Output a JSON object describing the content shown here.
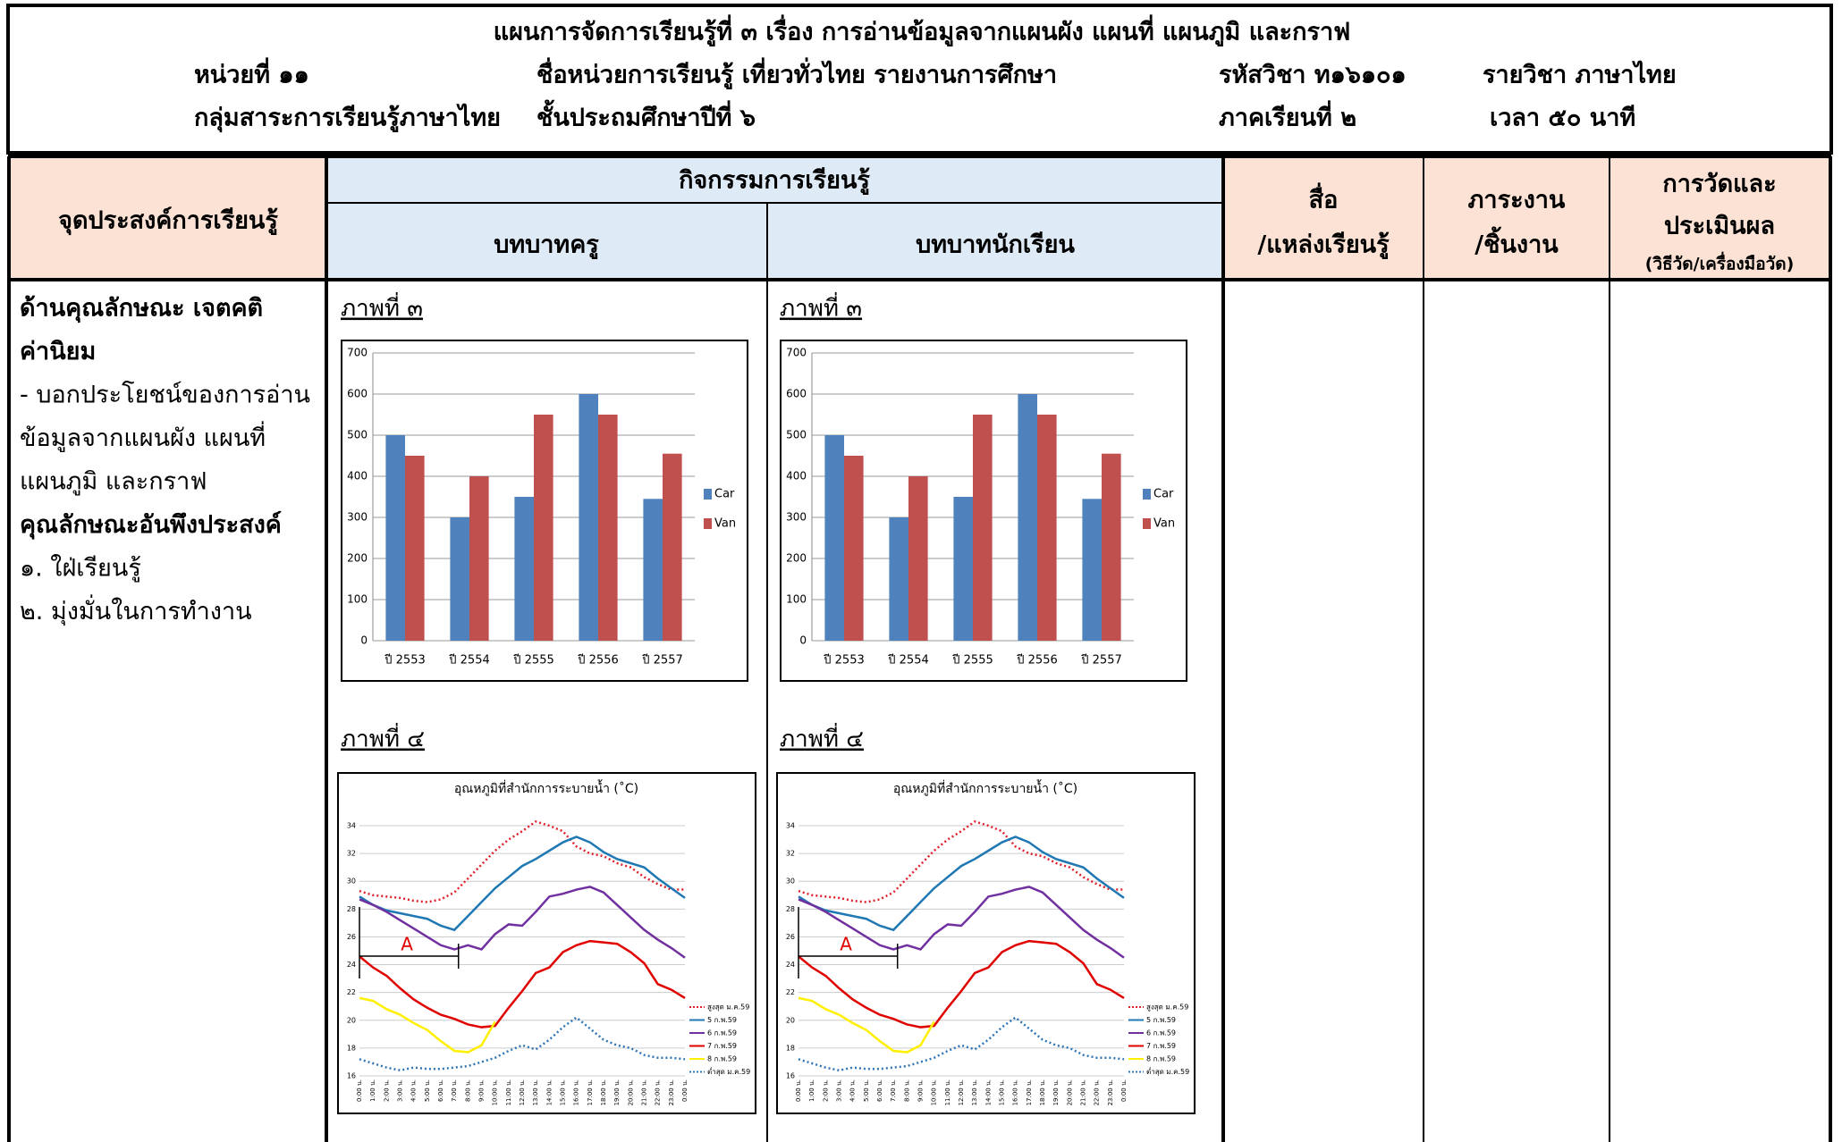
{
  "header": {
    "title": "แผนการจัดการเรียนรู้ที่ ๓  เรื่อง การอ่านข้อมูลจากแผนผัง แผนที่ แผนภูมิ และกราฟ",
    "unit": "หน่วยที่ ๑๑",
    "unit_name": "ชื่อหน่วยการเรียนรู้ เที่ยวทั่วไทย รายงานการศึกษา",
    "subject_code": "รหัสวิชา ท๑๖๑๐๑",
    "subject": "รายวิชา ภาษาไทย",
    "group": "กลุ่มสาระการเรียนรู้ภาษาไทย",
    "grade": "ชั้นประถมศึกษาปีที่ ๖",
    "semester": "ภาคเรียนที่ ๒",
    "time": "เวลา ๕๐ นาที"
  },
  "table": {
    "headers": {
      "objectives": "จุดประสงค์การเรียนรู้",
      "activities": "กิจกรรมการเรียนรู้",
      "teacher": "บทบาทครู",
      "student": "บทบาทนักเรียน",
      "media": [
        "สื่อ",
        "/แหล่งเรียนรู้"
      ],
      "tasks": [
        "ภาระงาน",
        "/ชิ้นงาน"
      ],
      "evaluation": [
        "การวัดและ",
        "ประเมินผล",
        "(วิธีวัด/เครื่องมือวัด)"
      ]
    },
    "objectives": [
      {
        "text": "ด้านคุณลักษณะ เจตคติ",
        "bold": true
      },
      {
        "text": "ค่านิยม",
        "bold": true
      },
      {
        "text": "- บอกประโยชน์ของการอ่าน",
        "bold": false
      },
      {
        "text": "ข้อมูลจากแผนผัง แผนที่",
        "bold": false
      },
      {
        "text": "แผนภูมิ และกราฟ",
        "bold": false
      },
      {
        "text": "คุณลักษณะอันพึงประสงค์",
        "bold": true
      },
      {
        "text": "๑. ใฝ่เรียนรู้",
        "bold": false
      },
      {
        "text": "๒. มุ่งมั่นในการทำงาน",
        "bold": false
      }
    ]
  },
  "figures": [
    {
      "caption": "ภาพที่ ๓",
      "chart": {
        "type": "bar",
        "categories": [
          "ปี 2553",
          "ปี 2554",
          "ปี 2555",
          "ปี 2556",
          "ปี 2557"
        ],
        "series": [
          {
            "name": "Car",
            "color": "#4f81bd",
            "values": [
              500,
              300,
              350,
              600,
              345
            ]
          },
          {
            "name": "Van",
            "color": "#c0504d",
            "values": [
              450,
              400,
              550,
              550,
              455
            ]
          }
        ],
        "ylim": [
          0,
          700
        ],
        "yticks": [
          0,
          100,
          200,
          300,
          400,
          500,
          600,
          700
        ],
        "grid": true,
        "legend": "right"
      }
    },
    {
      "caption": "ภาพที่ ๔",
      "chart": {
        "type": "line",
        "title": "อุณหภูมิที่สำนักการระบายน้ำ (˚C)",
        "categories": [
          "0:00 น.",
          "1:00 น.",
          "2:00 น.",
          "3:00 น.",
          "4:00 น.",
          "5:00 น.",
          "6:00 น.",
          "7:00 น.",
          "8:00 น.",
          "9:00 น.",
          "10:00 น.",
          "11:00 น.",
          "12:00 น.",
          "13:00 น.",
          "14:00 น.",
          "15:00 น.",
          "16:00 น.",
          "17:00 น.",
          "18:00 น.",
          "19:00 น.",
          "20:00 น.",
          "21:00 น.",
          "22:00 น.",
          "23:00 น.",
          "0:00 น."
        ],
        "series": [
          {
            "name": "สูงสุด ม.ค.59",
            "color": "#e0202a",
            "dash": "dotted",
            "values": [
              29.3,
              29,
              28.9,
              28.8,
              28.6,
              28.5,
              28.7,
              29.2,
              30.2,
              31.2,
              32.2,
              33,
              33.6,
              34.3,
              34,
              33.6,
              32.5,
              32,
              31.8,
              31.3,
              31,
              30.3,
              29.8,
              29.4,
              29.4
            ]
          },
          {
            "name": "5 ก.พ.59",
            "color": "#1f78b4",
            "dash": "solid",
            "values": [
              28.9,
              28.3,
              27.9,
              27.7,
              27.5,
              27.3,
              26.8,
              26.5,
              27.5,
              28.5,
              29.5,
              30.3,
              31.1,
              31.6,
              32.2,
              32.8,
              33.2,
              32.8,
              32.1,
              31.6,
              31.3,
              31,
              30.2,
              29.5,
              28.8
            ]
          },
          {
            "name": "6 ก.พ.59",
            "color": "#7030a0",
            "dash": "solid",
            "values": [
              28.7,
              28.3,
              27.8,
              27.2,
              26.6,
              26,
              25.4,
              25.1,
              25.4,
              25.1,
              26.2,
              26.9,
              26.8,
              27.8,
              28.9,
              29.1,
              29.4,
              29.6,
              29.2,
              28.3,
              27.4,
              26.5,
              25.8,
              25.2,
              24.5
            ]
          },
          {
            "name": "7 ก.พ.59",
            "color": "#e00000",
            "dash": "solid",
            "values": [
              24.6,
              23.8,
              23.2,
              22.3,
              21.5,
              20.9,
              20.4,
              20.1,
              19.7,
              19.5,
              19.6,
              20.9,
              22.1,
              23.4,
              23.8,
              24.9,
              25.4,
              25.7,
              25.6,
              25.5,
              24.9,
              24.1,
              22.6,
              22.2,
              21.6
            ]
          },
          {
            "name": "8 ก.พ.59",
            "color": "#ffef00",
            "dash": "solid",
            "values": [
              21.6,
              21.4,
              20.8,
              20.4,
              19.8,
              19.3,
              18.5,
              17.8,
              17.7,
              18.2,
              19.9,
              null,
              null,
              null,
              null,
              null,
              null,
              null,
              null,
              null,
              null,
              null,
              null,
              null,
              null
            ]
          },
          {
            "name": "ต่ำสุด ม.ค.59",
            "color": "#2e75b6",
            "dash": "dotted",
            "values": [
              17.2,
              16.9,
              16.6,
              16.4,
              16.6,
              16.5,
              16.5,
              16.6,
              16.7,
              17,
              17.3,
              17.8,
              18.2,
              17.9,
              18.6,
              19.5,
              20.2,
              19.4,
              18.6,
              18.2,
              18,
              17.5,
              17.3,
              17.3,
              17.2
            ]
          }
        ],
        "ylim": [
          16,
          34
        ],
        "yticks": [
          16,
          18,
          20,
          22,
          24,
          26,
          28,
          30,
          32,
          34
        ],
        "grid": true,
        "legend": "right",
        "annotation": "A"
      }
    }
  ]
}
